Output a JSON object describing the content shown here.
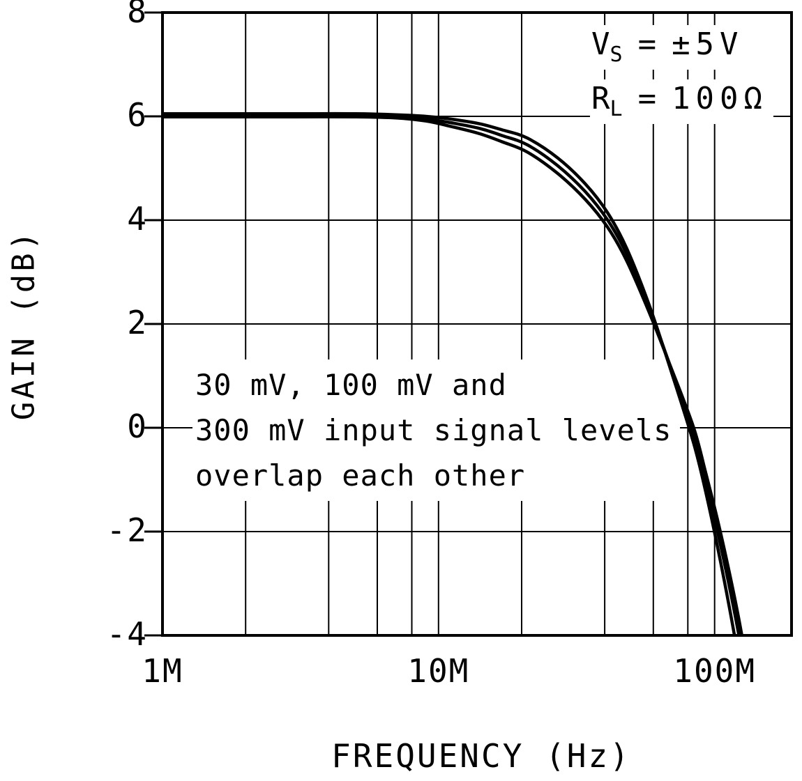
{
  "figure": {
    "background": "#ffffff",
    "line_color": "#000000"
  },
  "chart_data": {
    "type": "line",
    "title": "",
    "xlabel": "FREQUENCY (Hz)",
    "ylabel": "GAIN (dB)",
    "x_scale": "log",
    "grid": true,
    "legend_position": "none",
    "x_min_hz": 1000000,
    "x_max_hz": 190000000,
    "y_min_db": -4,
    "y_max_db": 8,
    "x_ticks": [
      {
        "value_hz": 1000000,
        "label": "1M"
      },
      {
        "value_hz": 10000000,
        "label": "10M"
      },
      {
        "value_hz": 100000000,
        "label": "100M"
      }
    ],
    "x_minor_grid_multiples": [
      2,
      4,
      6,
      8,
      10
    ],
    "y_ticks": [
      {
        "value_db": 8,
        "label": "8"
      },
      {
        "value_db": 6,
        "label": "6"
      },
      {
        "value_db": 4,
        "label": "4"
      },
      {
        "value_db": 2,
        "label": "2"
      },
      {
        "value_db": 0,
        "label": "0"
      },
      {
        "value_db": -2,
        "label": "-2"
      },
      {
        "value_db": -4,
        "label": "-4"
      }
    ],
    "y_grid_db": [
      6,
      4,
      2,
      0,
      -2
    ],
    "conditions": [
      {
        "base": "V",
        "sub": "S",
        "eq": "=",
        "value": "±5V"
      },
      {
        "base": "R",
        "sub": "L",
        "eq": "=",
        "value": "100Ω"
      }
    ],
    "note_lines": [
      "30 mV, 100 mV and",
      "300 mV input signal levels",
      "overlap each other"
    ],
    "x_mhz": [
      1,
      2,
      3,
      5,
      7,
      9,
      11,
      14,
      17,
      21,
      27,
      34,
      41,
      48,
      58,
      70,
      84,
      93,
      103,
      113,
      123,
      132
    ],
    "series": [
      {
        "name": "30 mV input signal",
        "gain_db": [
          6.02,
          6.02,
          6.02,
          6.02,
          6.0,
          5.95,
          5.88,
          5.77,
          5.63,
          5.45,
          5.05,
          4.55,
          4.0,
          3.35,
          2.3,
          1.1,
          -0.15,
          -1.05,
          -2.05,
          -3.05,
          -4.05,
          -5.0
        ]
      },
      {
        "name": "100 mV input signal",
        "gain_db": [
          6.05,
          6.05,
          6.05,
          6.05,
          6.03,
          6.0,
          5.95,
          5.86,
          5.74,
          5.58,
          5.2,
          4.7,
          4.14,
          3.46,
          2.36,
          1.05,
          -0.3,
          -1.25,
          -2.35,
          -3.45,
          -4.55,
          -5.6
        ]
      },
      {
        "name": "300 mV input signal",
        "gain_db": [
          5.99,
          5.99,
          5.99,
          5.99,
          5.97,
          5.91,
          5.81,
          5.67,
          5.51,
          5.31,
          4.9,
          4.4,
          3.86,
          3.22,
          2.22,
          1.12,
          0.0,
          -0.88,
          -1.82,
          -2.78,
          -3.74,
          -4.68
        ]
      }
    ]
  }
}
